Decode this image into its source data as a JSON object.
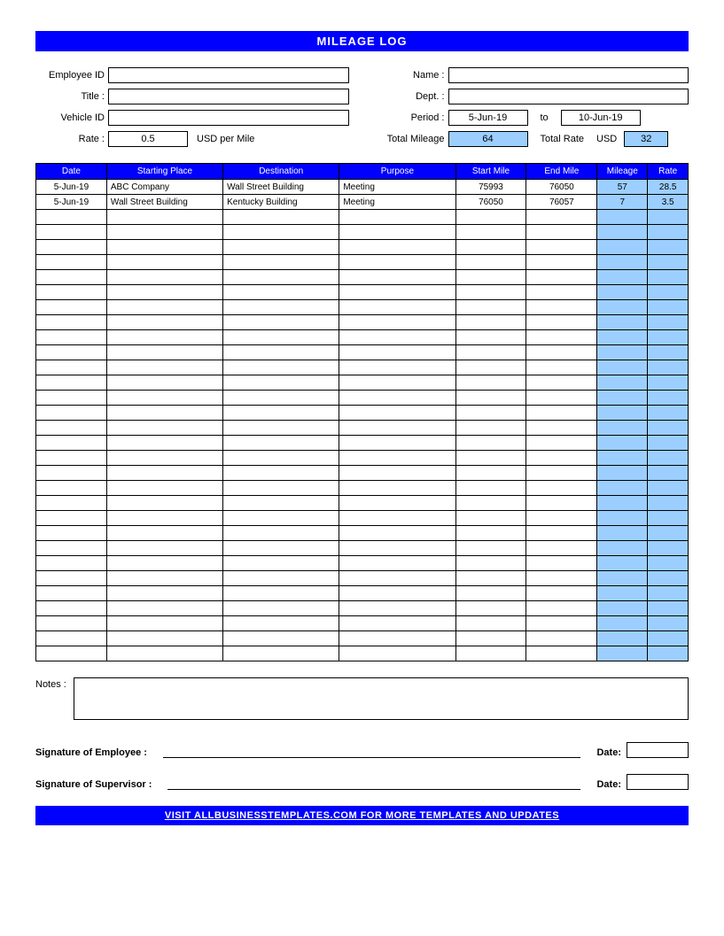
{
  "title": "MILEAGE LOG",
  "header": {
    "employee_id_label": "Employee ID",
    "employee_id": "",
    "name_label": "Name :",
    "name": "",
    "title_label": "Title :",
    "title": "",
    "dept_label": "Dept. :",
    "dept": "",
    "vehicle_id_label": "Vehicle ID",
    "vehicle_id": "",
    "period_label": "Period :",
    "period_from": "5-Jun-19",
    "period_to_label": "to",
    "period_to": "10-Jun-19",
    "rate_label": "Rate :",
    "rate": "0.5",
    "rate_unit": "USD per Mile",
    "total_mileage_label": "Total Mileage",
    "total_mileage": "64",
    "total_rate_label": "Total Rate",
    "total_rate_currency": "USD",
    "total_rate": "32"
  },
  "table": {
    "columns": [
      "Date",
      "Starting Place",
      "Destination",
      "Purpose",
      "Start Mile",
      "End Mile",
      "Mileage",
      "Rate"
    ],
    "rows": [
      {
        "date": "5-Jun-19",
        "start": "ABC Company",
        "dest": "Wall Street Building",
        "purpose": "Meeting",
        "smile": "75993",
        "emile": "76050",
        "mileage": "57",
        "rate": "28.5"
      },
      {
        "date": "5-Jun-19",
        "start": "Wall Street Building",
        "dest": "Kentucky Building",
        "purpose": "Meeting",
        "smile": "76050",
        "emile": "76057",
        "mileage": "7",
        "rate": "3.5"
      }
    ],
    "empty_rows": 30,
    "colors": {
      "header_bg": "#0000ff",
      "header_text": "#ffffff",
      "calc_bg": "#9ccfff",
      "border": "#000000"
    }
  },
  "notes": {
    "label": "Notes :",
    "value": ""
  },
  "signatures": {
    "employee_label": "Signature of Employee :",
    "supervisor_label": "Signature of Supervisor :",
    "date_label": "Date:"
  },
  "footer": "VISIT ALLBUSINESSTEMPLATES.COM FOR MORE TEMPLATES AND UPDATES"
}
